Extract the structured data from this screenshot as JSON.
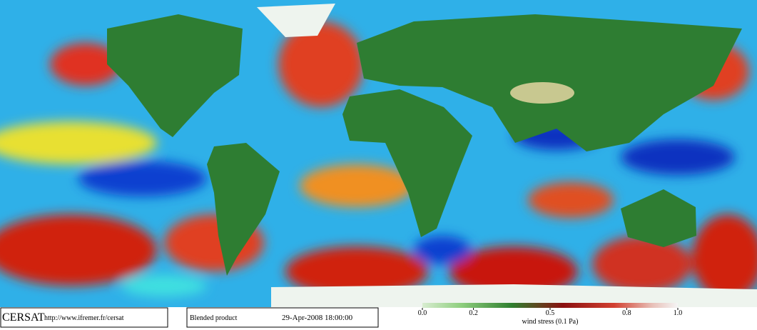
{
  "footer": {
    "logo": "CERSAT",
    "url": "http://www.ifremer.fr/cersat",
    "product": "Blended product",
    "date": "29-Apr-2008 18:00:00"
  },
  "colorbar": {
    "label": "wind stress (0.1 Pa)",
    "lim": [
      0,
      1
    ],
    "ticks": [
      {
        "value": 0,
        "label": "0.0"
      },
      0.2,
      0.5,
      0.8,
      {
        "value": 1,
        "label": "1.0"
      }
    ]
  }
}
